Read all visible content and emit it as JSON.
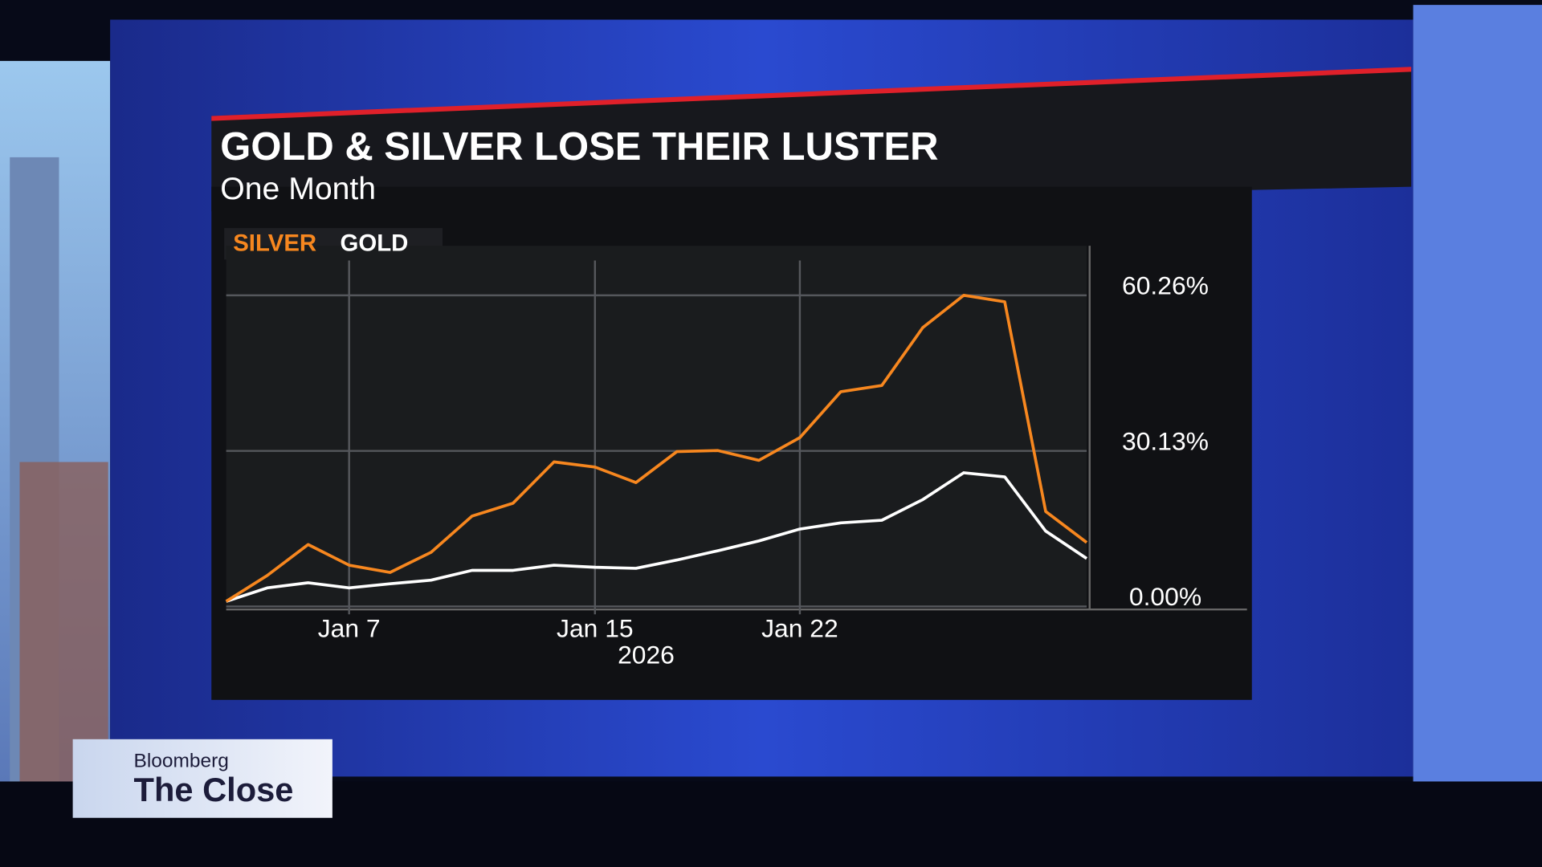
{
  "chart_data": {
    "type": "line",
    "title": "GOLD & SILVER LOSE THEIR LUSTER",
    "subtitle": "One Month",
    "x_label": "2026",
    "categories": [
      null,
      null,
      null,
      "Jan 7",
      null,
      null,
      null,
      null,
      null,
      "Jan 15",
      null,
      null,
      null,
      null,
      "Jan 22",
      null,
      null,
      null,
      null,
      null,
      null,
      null
    ],
    "series": [
      {
        "name": "SILVER",
        "color": "#f7871f",
        "values": [
          1,
          6,
          12,
          8,
          6.6,
          10.5,
          17.5,
          20,
          28,
          27,
          24,
          30,
          30.2,
          28.3,
          32.7,
          41.6,
          42.8,
          54,
          60.26,
          59,
          18.4,
          12.4
        ]
      },
      {
        "name": "GOLD",
        "color": "#ffffff",
        "values": [
          1,
          3.6,
          4.6,
          3.6,
          4.4,
          5.1,
          7,
          7,
          8,
          7.6,
          7.4,
          9,
          10.8,
          12.7,
          15,
          16.2,
          16.7,
          20.7,
          25.9,
          25.1,
          14.6,
          9.3
        ]
      }
    ],
    "ylim": [
      0,
      67
    ],
    "yticks": [
      {
        "value": 0,
        "label": "0.00%"
      },
      {
        "value": 30.13,
        "label": "30.13%"
      },
      {
        "value": 60.26,
        "label": "60.26%"
      }
    ],
    "grid": true,
    "legend": "top-left"
  },
  "branding": {
    "network": "Bloomberg",
    "show": "The Close"
  }
}
